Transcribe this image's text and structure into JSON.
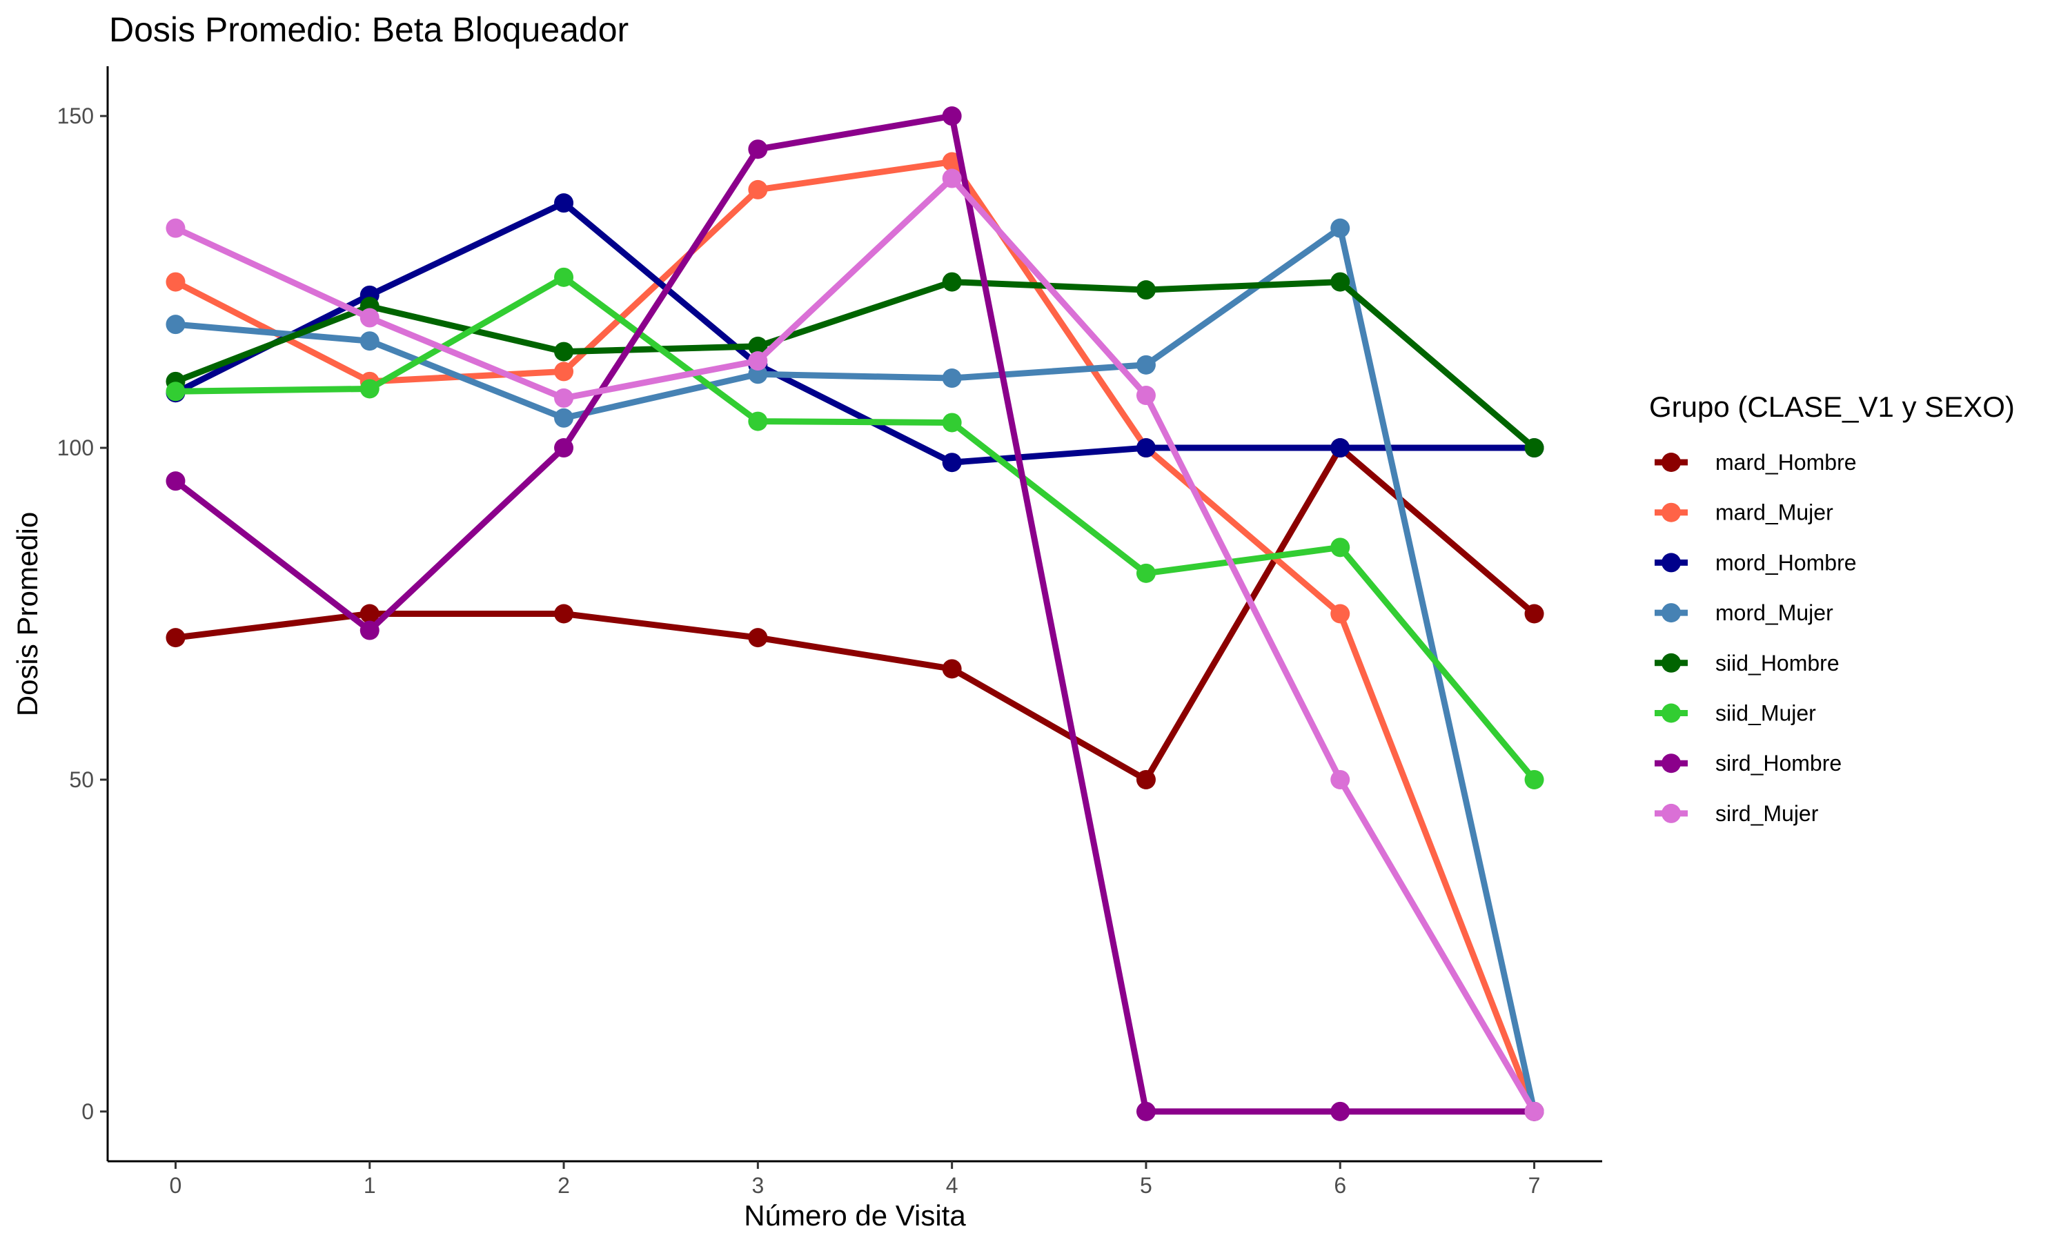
{
  "chart_data": {
    "type": "line",
    "title": "Dosis Promedio: Beta Bloqueador",
    "xlabel": "Número de Visita",
    "ylabel": "Dosis Promedio",
    "x": [
      0,
      1,
      2,
      3,
      4,
      5,
      6,
      7
    ],
    "x_ticks": [
      "0",
      "1",
      "2",
      "3",
      "4",
      "5",
      "6",
      "7"
    ],
    "y_ticks": [
      "0",
      "50",
      "100",
      "150"
    ],
    "xlim": [
      -0.35,
      7.35
    ],
    "ylim": [
      -7.5,
      157.5
    ],
    "grid": false,
    "legend": {
      "title": "Grupo (CLASE_V1 y SEXO)",
      "position": "right"
    },
    "series": [
      {
        "name": "mard_Hombre",
        "color": "#8B0000",
        "values": [
          71.4,
          75,
          75,
          71.4,
          66.7,
          50,
          100,
          75
        ]
      },
      {
        "name": "mard_Mujer",
        "color": "#FF6347",
        "values": [
          125,
          110,
          111.5,
          138.9,
          143.1,
          100,
          75,
          0
        ]
      },
      {
        "name": "mord_Hombre",
        "color": "#00008B",
        "values": [
          108.3,
          123,
          136.9,
          112.5,
          97.8,
          100,
          100,
          100
        ]
      },
      {
        "name": "mord_Mujer",
        "color": "#4682B4",
        "values": [
          118.6,
          116.1,
          104.5,
          111.1,
          110.5,
          112.5,
          133.1,
          0
        ]
      },
      {
        "name": "siid_Hombre",
        "color": "#006400",
        "values": [
          110,
          121.3,
          114.5,
          115.3,
          125,
          123.8,
          125,
          100
        ]
      },
      {
        "name": "siid_Mujer",
        "color": "#32CD32",
        "values": [
          108.5,
          108.9,
          125.7,
          104,
          103.8,
          81.1,
          85,
          50
        ]
      },
      {
        "name": "sird_Hombre",
        "color": "#8B008B",
        "values": [
          95,
          72.5,
          100,
          145,
          150,
          0,
          0,
          0
        ]
      },
      {
        "name": "sird_Mujer",
        "color": "#DA70D6",
        "values": [
          133.1,
          119.6,
          107.5,
          113.1,
          140.6,
          107.9,
          50,
          0
        ]
      }
    ]
  }
}
